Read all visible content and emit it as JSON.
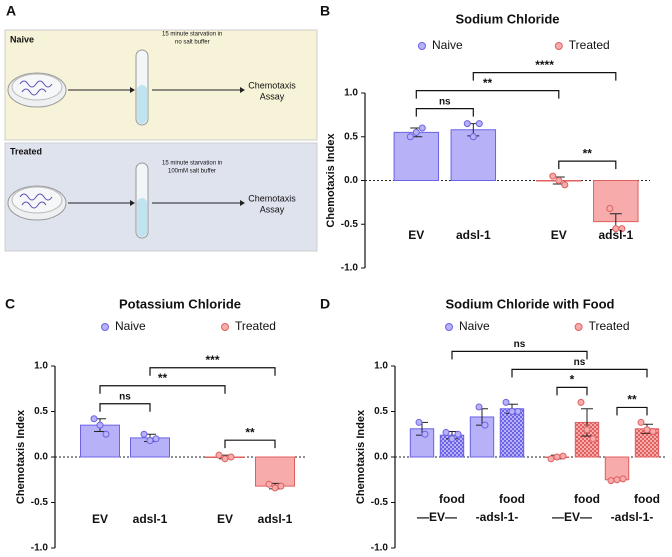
{
  "diagram": {
    "label": "A",
    "rows": [
      {
        "name": "Naive",
        "step": [
          "15 minute starvation in",
          "no salt buffer"
        ],
        "result": [
          "Chemotaxis",
          "Assay"
        ]
      },
      {
        "name": "Treated",
        "step": [
          "15 minute starvation in",
          "100mM salt buffer"
        ],
        "result": [
          "Chemotaxis",
          "Assay"
        ]
      }
    ]
  },
  "chart_data": [
    {
      "type": "bar",
      "label": "B",
      "title": "Sodium Chloride",
      "ylabel": "Chemotaxis Index",
      "categories": [
        "EV",
        "adsl-1",
        "EV",
        "adsl-1"
      ],
      "series": [
        {
          "name": "Naive",
          "color": "#b7b2f7",
          "edge_color": "#6c63e6",
          "values": [
            0.55,
            0.58,
            null,
            null
          ],
          "errors": [
            0.05,
            0.07,
            null,
            null
          ],
          "points": [
            [
              0.5,
              0.55,
              0.6
            ],
            [
              0.65,
              0.5,
              0.65
            ],
            null,
            null
          ]
        },
        {
          "name": "Treated",
          "color": "#f8abab",
          "edge_color": "#e06060",
          "values": [
            null,
            null,
            0.0,
            -0.47
          ],
          "errors": [
            null,
            null,
            0.04,
            0.09
          ],
          "points": [
            null,
            null,
            [
              0.05,
              0.0,
              -0.05
            ],
            [
              -0.32,
              -0.55,
              -0.55
            ]
          ]
        }
      ],
      "comparisons": [
        {
          "from": 0,
          "to": 1,
          "label": "ns"
        },
        {
          "from": 2,
          "to": 3,
          "label": "**"
        },
        {
          "from": 0,
          "to": 2,
          "label": "**"
        },
        {
          "from": 1,
          "to": 3,
          "label": "****"
        }
      ],
      "ylim": [
        -1,
        1
      ],
      "yticks": [
        {
          "value": -1,
          "label": "-1.0"
        },
        -0.5,
        {
          "value": 0,
          "label": "0.0"
        },
        0.5,
        {
          "value": 1,
          "label": "1.0"
        }
      ]
    },
    {
      "type": "bar",
      "label": "C",
      "title": "Potassium Chloride",
      "ylabel": "Chemotaxis Index",
      "categories": [
        "EV",
        "adsl-1",
        "EV",
        "adsl-1"
      ],
      "series": [
        {
          "name": "Naive",
          "color": "#b7b2f7",
          "edge_color": "#6c63e6",
          "values": [
            0.35,
            0.21,
            null,
            null
          ],
          "errors": [
            0.07,
            0.04,
            null,
            null
          ],
          "points": [
            [
              0.42,
              0.35,
              0.25
            ],
            [
              0.25,
              0.18,
              0.2
            ],
            null,
            null
          ]
        },
        {
          "name": "Treated",
          "color": "#f8abab",
          "edge_color": "#e06060",
          "values": [
            null,
            null,
            0.0,
            -0.32
          ],
          "errors": [
            null,
            null,
            0.02,
            0.03
          ],
          "points": [
            null,
            null,
            [
              0.02,
              -0.02,
              0.0
            ],
            [
              -0.3,
              -0.34,
              -0.32
            ]
          ]
        }
      ],
      "comparisons": [
        {
          "from": 0,
          "to": 1,
          "label": "ns"
        },
        {
          "from": 2,
          "to": 3,
          "label": "**"
        },
        {
          "from": 0,
          "to": 2,
          "label": "**"
        },
        {
          "from": 1,
          "to": 3,
          "label": "***"
        }
      ],
      "ylim": [
        -1,
        1
      ],
      "yticks": [
        {
          "value": -1,
          "label": "-1.0"
        },
        -0.5,
        {
          "value": 0,
          "label": "0.0"
        },
        0.5,
        {
          "value": 1,
          "label": "1.0"
        }
      ]
    },
    {
      "type": "bar",
      "label": "D",
      "title": "Sodium Chloride with Food",
      "ylabel": "Chemotaxis Index",
      "categories": [
        null,
        "food",
        null,
        "food",
        null,
        "food",
        null,
        "food"
      ],
      "group_labels": [
        "—EV—",
        "-adsl-1-",
        "—EV—",
        "-adsl-1-"
      ],
      "patterned": [
        false,
        true,
        false,
        true,
        false,
        true,
        false,
        true
      ],
      "series": [
        {
          "name": "Naive",
          "color": "#b7b2f7",
          "edge_color": "#6c63e6",
          "values": [
            0.31,
            0.24,
            0.44,
            0.53,
            null,
            null,
            null,
            null
          ],
          "errors": [
            0.07,
            0.04,
            0.09,
            0.05,
            null,
            null,
            null,
            null
          ],
          "points": [
            [
              0.38,
              0.25
            ],
            [
              0.27,
              0.2,
              0.25
            ],
            [
              0.55,
              0.35
            ],
            [
              0.6,
              0.5,
              0.5
            ],
            null,
            null,
            null,
            null
          ]
        },
        {
          "name": "Treated",
          "color": "#f8abab",
          "edge_color": "#e06060",
          "values": [
            null,
            null,
            null,
            null,
            0.0,
            0.38,
            -0.25,
            0.31
          ],
          "errors": [
            null,
            null,
            null,
            null,
            0.02,
            0.15,
            0.01,
            0.05
          ],
          "points": [
            null,
            null,
            null,
            null,
            [
              -0.02,
              0.0,
              0.01
            ],
            [
              0.6,
              0.3,
              0.2
            ],
            [
              -0.26,
              -0.25,
              -0.24
            ],
            [
              0.38,
              0.3,
              0.28
            ]
          ]
        }
      ],
      "comparisons": [
        {
          "from": 4,
          "to": 5,
          "label": "*"
        },
        {
          "from": 6,
          "to": 7,
          "label": "**"
        },
        {
          "from": 3,
          "to": 7,
          "label": "ns"
        },
        {
          "from": 1,
          "to": 5,
          "label": "ns"
        }
      ],
      "ylim": [
        -1,
        1
      ],
      "yticks": [
        {
          "value": -1,
          "label": "-1.0"
        },
        -0.5,
        {
          "value": 0,
          "label": "0.0"
        },
        0.5,
        {
          "value": 1,
          "label": "1.0"
        }
      ]
    }
  ]
}
